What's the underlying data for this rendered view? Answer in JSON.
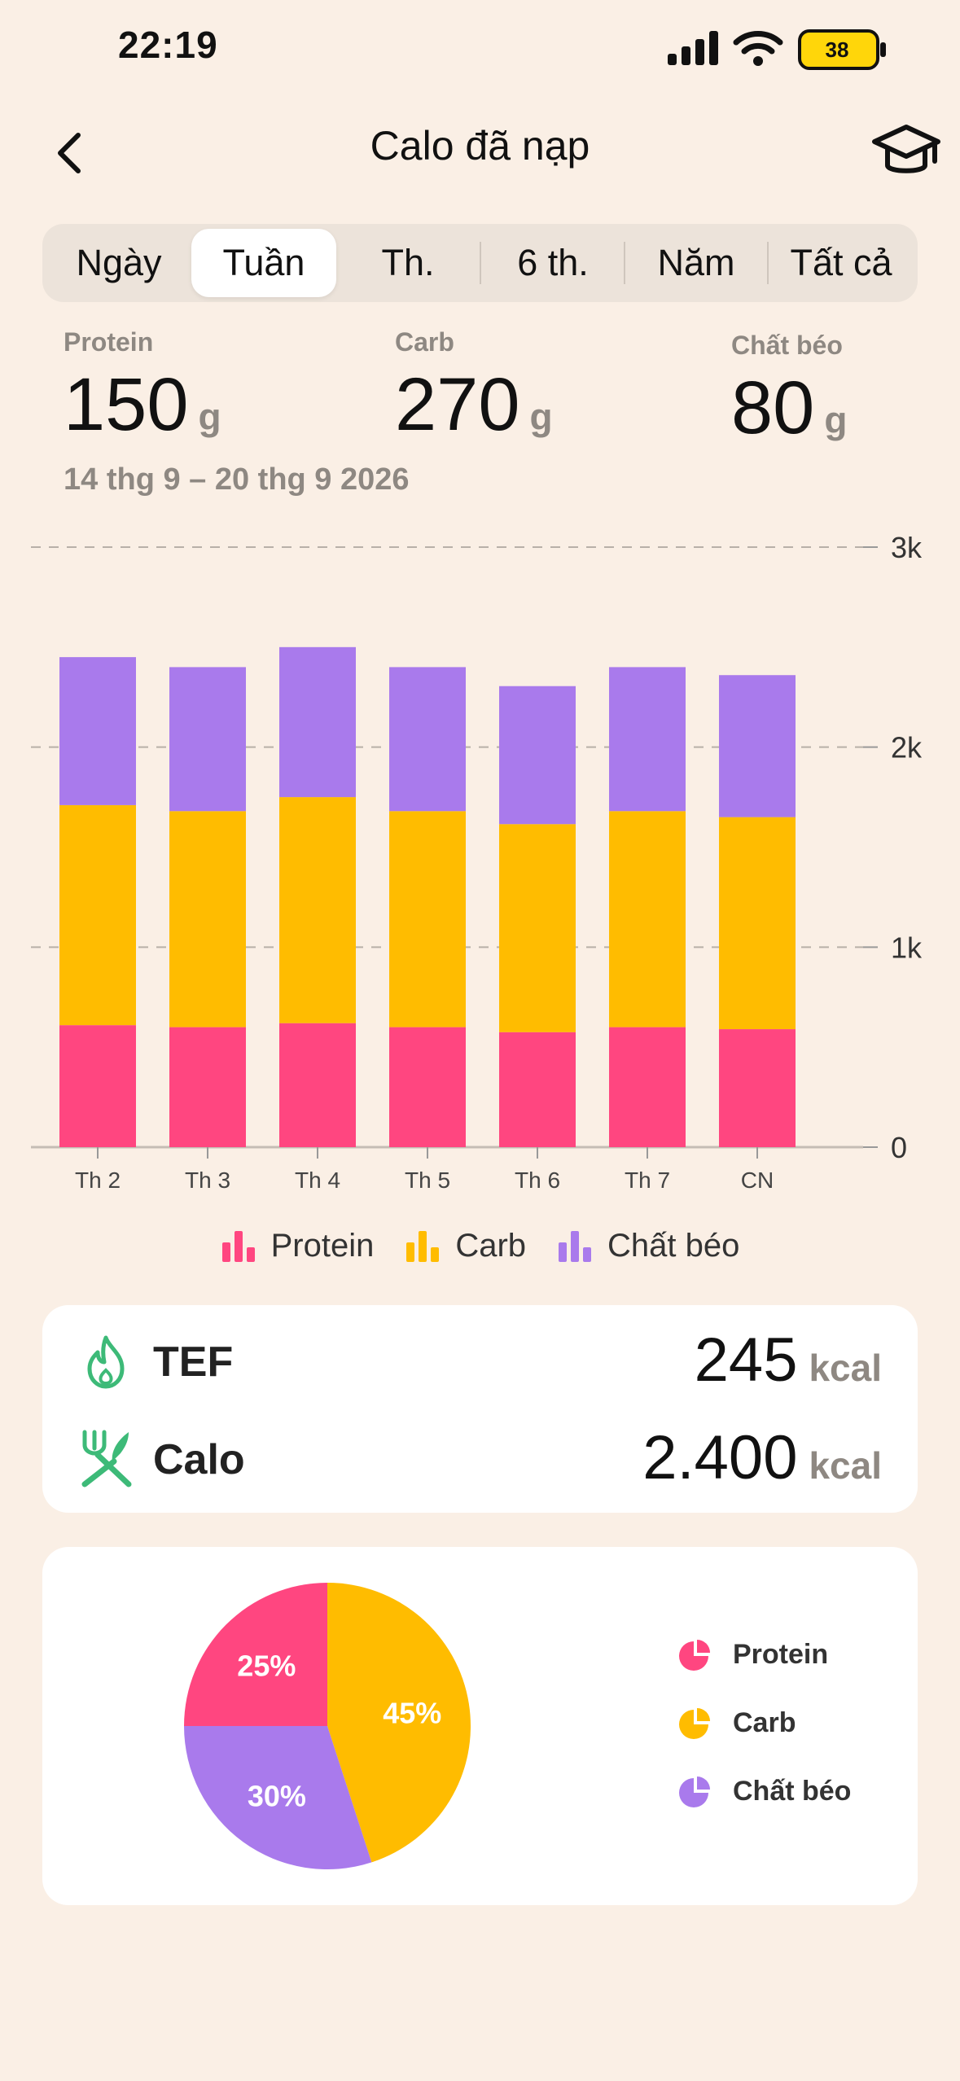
{
  "status": {
    "time": "22:19",
    "battery": "38"
  },
  "nav": {
    "title": "Calo đã nạp"
  },
  "segments": [
    "Ngày",
    "Tuần",
    "Th.",
    "6 th.",
    "Năm",
    "Tất cả"
  ],
  "active_segment": "Tuần",
  "summary": {
    "protein": {
      "label": "Protein",
      "value": "150",
      "unit": "g"
    },
    "carb": {
      "label": "Carb",
      "value": "270",
      "unit": "g"
    },
    "fat": {
      "label": "Chất béo",
      "value": "80",
      "unit": "g"
    }
  },
  "date_range": "14 thg 9 – 20 thg 9 2026",
  "legend": {
    "protein": "Protein",
    "carb": "Carb",
    "fat": "Chất béo"
  },
  "colors": {
    "protein": "#FF4680",
    "carb": "#FFBC00",
    "fat": "#A97AEC",
    "accent": "#3DBA78"
  },
  "energy": {
    "tef": {
      "label": "TEF",
      "value": "245",
      "unit": "kcal"
    },
    "calo": {
      "label": "Calo",
      "value": "2.400",
      "unit": "kcal"
    }
  },
  "pie": {
    "slices": [
      {
        "name": "Protein",
        "percent": 25,
        "label": "25%"
      },
      {
        "name": "Carb",
        "percent": 45,
        "label": "45%"
      },
      {
        "name": "Chất béo",
        "percent": 30,
        "label": "30%"
      }
    ]
  },
  "chart_data": {
    "type": "bar",
    "stacked": true,
    "categories": [
      "Th 2",
      "Th 3",
      "Th 4",
      "Th 5",
      "Th 6",
      "Th 7",
      "CN"
    ],
    "series": [
      {
        "name": "Protein",
        "values": [
          610,
          600,
          620,
          600,
          575,
          600,
          590
        ]
      },
      {
        "name": "Carb",
        "values": [
          1100,
          1080,
          1130,
          1080,
          1040,
          1080,
          1060
        ]
      },
      {
        "name": "Chất béo",
        "values": [
          740,
          720,
          750,
          720,
          690,
          720,
          710
        ]
      }
    ],
    "ylim": [
      0,
      3000
    ],
    "yticks": [
      {
        "value": 0,
        "label": "0"
      },
      {
        "value": 1000,
        "label": "1k"
      },
      {
        "value": 2000,
        "label": "2k"
      },
      {
        "value": 3000,
        "label": "3k"
      }
    ],
    "grid": true,
    "legend_position": "bottom"
  }
}
